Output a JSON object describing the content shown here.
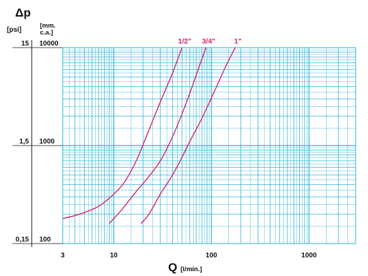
{
  "chart_data": {
    "type": "line",
    "x_scale": "log",
    "y_scale": "log",
    "xlim": [
      3,
      3000
    ],
    "ylim": [
      100,
      10000
    ],
    "grid": true,
    "grid_color": "#29b3d6",
    "line_color": "#d6226e",
    "y_title": "Δp",
    "y_units_left": "[psi]",
    "y_units_right": "[mm.\nc.a.]",
    "x_title": "Q",
    "x_units": "[l/min.]",
    "x_ticks": [
      {
        "value": 3,
        "label": "3"
      },
      {
        "value": 10,
        "label": "10"
      },
      {
        "value": 100,
        "label": "100"
      },
      {
        "value": 1000,
        "label": "1000"
      }
    ],
    "y_ticks": [
      {
        "value": 10000,
        "psi": "15",
        "mm": "10000"
      },
      {
        "value": 1000,
        "psi": "1,5",
        "mm": "1000"
      },
      {
        "value": 100,
        "psi": "0,15",
        "mm": "100"
      }
    ],
    "series": [
      {
        "name": "1/2\"",
        "x": [
          3,
          4.5,
          7,
          10,
          13,
          17,
          22,
          30,
          40,
          50
        ],
        "y": [
          180,
          200,
          240,
          320,
          430,
          700,
          1300,
          2800,
          5500,
          10000
        ]
      },
      {
        "name": "3/4\"",
        "x": [
          9,
          12,
          17,
          22,
          30,
          38,
          48,
          60,
          75,
          88
        ],
        "y": [
          160,
          220,
          340,
          460,
          700,
          1100,
          1900,
          3400,
          6400,
          10000
        ]
      },
      {
        "name": "1\"",
        "x": [
          19,
          23,
          30,
          38,
          48,
          60,
          80,
          105,
          140,
          175
        ],
        "y": [
          160,
          200,
          320,
          460,
          700,
          1100,
          1900,
          3400,
          6400,
          10000
        ]
      }
    ]
  }
}
